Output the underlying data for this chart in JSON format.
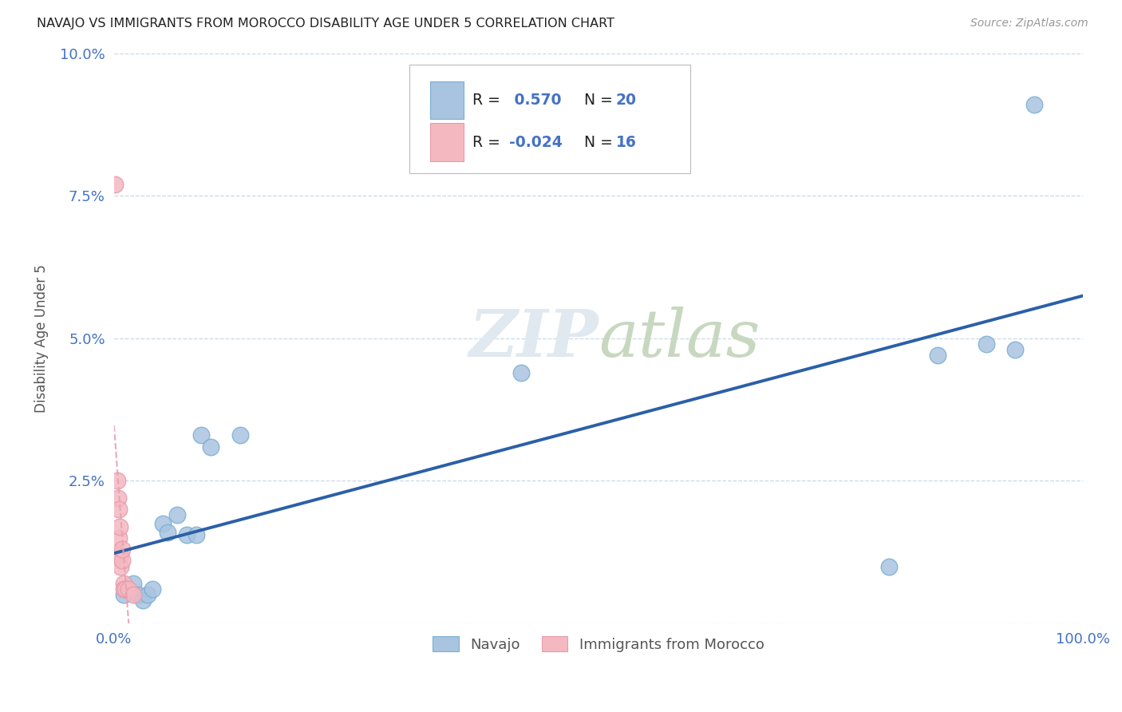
{
  "title": "NAVAJO VS IMMIGRANTS FROM MOROCCO DISABILITY AGE UNDER 5 CORRELATION CHART",
  "source": "Source: ZipAtlas.com",
  "ylabel": "Disability Age Under 5",
  "xlim": [
    0,
    1.0
  ],
  "ylim": [
    0,
    0.1
  ],
  "navajo_R": 0.57,
  "navajo_N": 20,
  "morocco_R": -0.024,
  "morocco_N": 16,
  "navajo_color": "#A8C4E0",
  "navajo_edge_color": "#7BAFD4",
  "morocco_color": "#F4B8C1",
  "morocco_edge_color": "#E89AAA",
  "navajo_line_color": "#2B5FA8",
  "morocco_line_color": "#E8A0B0",
  "tick_color": "#4472C4",
  "legend_blue": "#4472C4",
  "watermark_color": "#E0E8F0",
  "navajo_x": [
    0.01,
    0.02,
    0.025,
    0.03,
    0.035,
    0.04,
    0.05,
    0.055,
    0.065,
    0.075,
    0.085,
    0.09,
    0.1,
    0.13,
    0.42,
    0.8,
    0.85,
    0.9,
    0.93,
    0.95
  ],
  "navajo_y": [
    0.005,
    0.007,
    0.005,
    0.004,
    0.005,
    0.006,
    0.0175,
    0.016,
    0.019,
    0.0155,
    0.0155,
    0.033,
    0.031,
    0.033,
    0.044,
    0.01,
    0.047,
    0.049,
    0.048,
    0.091
  ],
  "morocco_x": [
    0.001,
    0.003,
    0.004,
    0.005,
    0.005,
    0.006,
    0.006,
    0.007,
    0.007,
    0.008,
    0.008,
    0.01,
    0.01,
    0.012,
    0.015,
    0.02
  ],
  "morocco_y": [
    0.077,
    0.025,
    0.022,
    0.02,
    0.015,
    0.017,
    0.012,
    0.012,
    0.01,
    0.011,
    0.013,
    0.007,
    0.006,
    0.006,
    0.006,
    0.005
  ],
  "navajo_legend_label": "Navajo",
  "morocco_legend_label": "Immigrants from Morocco"
}
